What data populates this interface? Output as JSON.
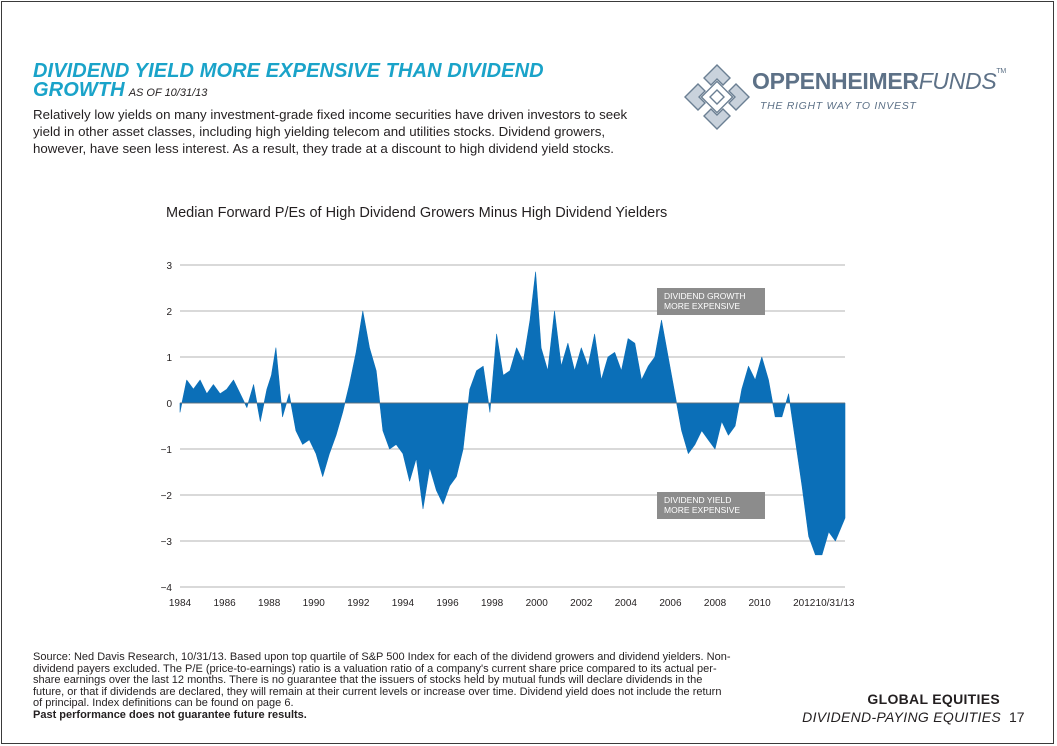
{
  "header": {
    "title": "DIVIDEND YIELD MORE EXPENSIVE THAN DIVIDEND GROWTH",
    "as_of": "AS OF 10/31/13",
    "intro": "Relatively low yields on many investment-grade fixed income securities have driven investors to seek yield in other asset classes, including high yielding telecom and utilities stocks. Dividend growers, however, have seen less interest. As a result, they trade at a discount to high dividend yield stocks."
  },
  "logo": {
    "name_bold": "OPPENHEIMER",
    "name_light": "FUNDS",
    "trademark": "TM",
    "tagline": "THE RIGHT WAY TO INVEST"
  },
  "footer": {
    "source": "Source: Ned Davis Research, 10/31/13. Based upon top quartile of S&P 500 Index for each of the dividend growers and dividend yielders. Non-dividend payers excluded. The P/E (price-to-earnings) ratio is a valuation ratio of a company's current share price compared to its actual per-share earnings over the last 12 months. There is no guarantee that the issuers of stocks held by mutual funds will declare dividends in the future, or that if dividends are declared, they will remain at their current levels or increase over time. Dividend yield does not include the return of principal. Index definitions can be found on page 6.",
    "disclaimer": "Past performance does not guarantee future results.",
    "section": "GLOBAL EQUITIES",
    "subsection": "DIVIDEND-PAYING EQUITIES",
    "page": "17"
  },
  "chart_data": {
    "type": "area",
    "title": "Median Forward P/Es of High Dividend Growers Minus High Dividend Yielders",
    "xlabel": "",
    "ylabel": "",
    "xlim": [
      1984,
      2013.83
    ],
    "ylim": [
      -4,
      3
    ],
    "yticks": [
      "3",
      "2",
      "1",
      "0",
      "−1",
      "−2",
      "−3",
      "−4"
    ],
    "xticks": [
      "1984",
      "1986",
      "1988",
      "1990",
      "1992",
      "1994",
      "1996",
      "1998",
      "2000",
      "2002",
      "2004",
      "2006",
      "2008",
      "2010",
      "2012",
      "10/31/13"
    ],
    "grid": true,
    "color": "#0b6fb8",
    "annotations": [
      "DIVIDEND GROWTH MORE EXPENSIVE",
      "DIVIDEND YIELD MORE EXPENSIVE"
    ],
    "x": [
      1984.0,
      1984.3,
      1984.6,
      1984.9,
      1985.2,
      1985.5,
      1985.8,
      1986.1,
      1986.4,
      1986.7,
      1987.0,
      1987.3,
      1987.6,
      1987.9,
      1988.1,
      1988.3,
      1988.6,
      1988.9,
      1989.2,
      1989.5,
      1989.8,
      1990.1,
      1990.4,
      1990.7,
      1991.0,
      1991.3,
      1991.6,
      1991.9,
      1992.2,
      1992.5,
      1992.8,
      1993.1,
      1993.4,
      1993.7,
      1994.0,
      1994.3,
      1994.6,
      1994.9,
      1995.2,
      1995.5,
      1995.8,
      1996.1,
      1996.4,
      1996.7,
      1997.0,
      1997.3,
      1997.6,
      1997.9,
      1998.2,
      1998.5,
      1998.8,
      1999.1,
      1999.4,
      1999.7,
      1999.95,
      2000.2,
      2000.5,
      2000.8,
      2001.1,
      2001.4,
      2001.7,
      2002.0,
      2002.3,
      2002.6,
      2002.9,
      2003.2,
      2003.5,
      2003.8,
      2004.1,
      2004.4,
      2004.7,
      2005.0,
      2005.3,
      2005.6,
      2005.9,
      2006.2,
      2006.5,
      2006.8,
      2007.1,
      2007.4,
      2007.7,
      2008.0,
      2008.3,
      2008.6,
      2008.9,
      2009.2,
      2009.5,
      2009.8,
      2010.1,
      2010.4,
      2010.7,
      2011.0,
      2011.3,
      2011.6,
      2011.9,
      2012.2,
      2012.5,
      2012.8,
      2013.1,
      2013.4,
      2013.83
    ],
    "values": [
      -0.2,
      0.5,
      0.3,
      0.5,
      0.2,
      0.4,
      0.2,
      0.3,
      0.5,
      0.2,
      -0.1,
      0.4,
      -0.4,
      0.3,
      0.6,
      1.2,
      -0.3,
      0.2,
      -0.6,
      -0.9,
      -0.8,
      -1.1,
      -1.6,
      -1.1,
      -0.7,
      -0.2,
      0.4,
      1.1,
      2.0,
      1.2,
      0.7,
      -0.6,
      -1.0,
      -0.9,
      -1.1,
      -1.7,
      -1.2,
      -2.3,
      -1.4,
      -1.9,
      -2.2,
      -1.8,
      -1.6,
      -1.0,
      0.3,
      0.7,
      0.8,
      -0.2,
      1.5,
      0.6,
      0.7,
      1.2,
      0.9,
      1.8,
      2.85,
      1.2,
      0.7,
      2.0,
      0.8,
      1.3,
      0.7,
      1.2,
      0.8,
      1.5,
      0.5,
      1.0,
      1.1,
      0.7,
      1.4,
      1.3,
      0.5,
      0.8,
      1.0,
      1.8,
      1.0,
      0.2,
      -0.6,
      -1.1,
      -0.9,
      -0.6,
      -0.8,
      -1.0,
      -0.4,
      -0.7,
      -0.5,
      0.3,
      0.8,
      0.5,
      1.0,
      0.5,
      -0.3,
      -0.3,
      0.2,
      -0.8,
      -1.8,
      -2.9,
      -3.3,
      -3.3,
      -2.8,
      -3.0,
      -2.5
    ]
  }
}
